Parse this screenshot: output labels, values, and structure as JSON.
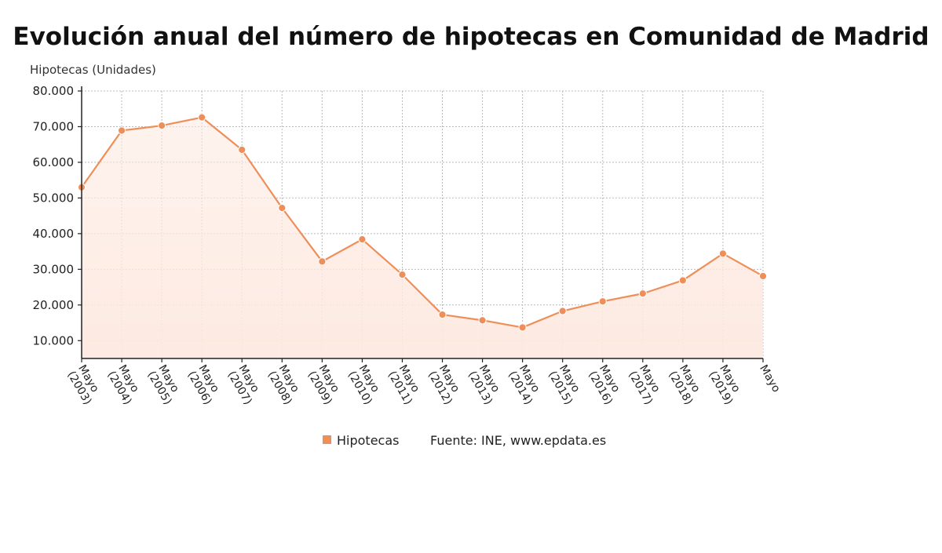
{
  "chart_data": {
    "type": "area",
    "title": "Evolución anual del número de hipotecas en Comunidad de Madrid",
    "ylabel": "Hipotecas (Unidades)",
    "xlabel": "",
    "categories": [
      "Mayo (2003)",
      "Mayo (2004)",
      "Mayo (2005)",
      "Mayo (2006)",
      "Mayo (2007)",
      "Mayo (2008)",
      "Mayo (2009)",
      "Mayo (2010)",
      "Mayo (2011)",
      "Mayo (2012)",
      "Mayo (2013)",
      "Mayo (2014)",
      "Mayo (2015)",
      "Mayo (2016)",
      "Mayo (2017)",
      "Mayo (2018)",
      "Mayo (2019)",
      "Mayo"
    ],
    "series": [
      {
        "name": "Hipotecas",
        "values": [
          53000,
          68900,
          70300,
          72600,
          63500,
          47200,
          32200,
          38400,
          28500,
          17300,
          15700,
          13700,
          18300,
          21000,
          23200,
          26900,
          34400,
          28100
        ]
      }
    ],
    "ylim": [
      5000,
      80000
    ],
    "yticks": [
      10000,
      20000,
      30000,
      40000,
      50000,
      60000,
      70000,
      80000
    ],
    "ytick_labels": [
      "10.000",
      "20.000",
      "30.000",
      "40.000",
      "50.000",
      "60.000",
      "70.000",
      "80.000"
    ],
    "grid": true,
    "legend_position": "bottom-center",
    "source": "Fuente: INE, www.epdata.es",
    "line_color": "#ee8f5a",
    "fill_color": "#fde9e0"
  }
}
